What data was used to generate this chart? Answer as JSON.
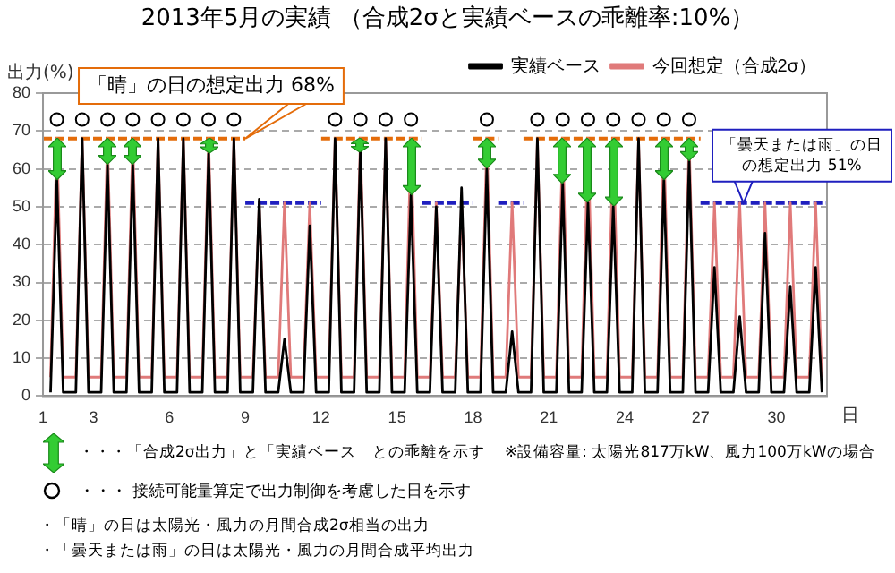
{
  "chart_data": {
    "type": "line",
    "title": "2013年5月の実績 （合成2σと実績ベースの乖離率:10%）",
    "ylabel": "出力(%)",
    "xlabel": "日",
    "xlim": [
      1,
      32
    ],
    "xticks": [
      1,
      3,
      6,
      9,
      12,
      15,
      18,
      21,
      24,
      27,
      30
    ],
    "ylim": [
      0,
      80
    ],
    "yticks": [
      0,
      10,
      20,
      30,
      40,
      50,
      60,
      70,
      80
    ],
    "grid": "y",
    "legend": "top right",
    "marker": "none",
    "line_style": "solid",
    "x": [
      1.3,
      1.55,
      1.8,
      2.3,
      2.55,
      2.8,
      3.3,
      3.55,
      3.8,
      4.3,
      4.55,
      4.8,
      5.3,
      5.55,
      5.8,
      6.3,
      6.55,
      6.8,
      7.3,
      7.55,
      7.8,
      8.3,
      8.55,
      8.8,
      9.3,
      9.55,
      9.8,
      10.3,
      10.55,
      10.8,
      11.3,
      11.55,
      11.8,
      12.3,
      12.55,
      12.8,
      13.3,
      13.55,
      13.8,
      14.3,
      14.55,
      14.8,
      15.3,
      15.55,
      15.8,
      16.3,
      16.55,
      16.8,
      17.3,
      17.55,
      17.8,
      18.3,
      18.55,
      18.8,
      19.3,
      19.55,
      19.8,
      20.3,
      20.55,
      20.8,
      21.3,
      21.55,
      21.8,
      22.3,
      22.55,
      22.8,
      23.3,
      23.55,
      23.8,
      24.3,
      24.55,
      24.8,
      25.3,
      25.55,
      25.8,
      26.3,
      26.55,
      26.8,
      27.3,
      27.55,
      27.8,
      28.3,
      28.55,
      28.8,
      29.3,
      29.55,
      29.8,
      30.3,
      30.55,
      30.8,
      31.3,
      31.55,
      31.8
    ],
    "series": [
      {
        "name": "実績ベース",
        "color": "#000000",
        "values": [
          1,
          57,
          1,
          1,
          68,
          1,
          1,
          61,
          1,
          1,
          61,
          1,
          1,
          68,
          1,
          1,
          68,
          1,
          1,
          64,
          1,
          1,
          68,
          1,
          1,
          52,
          1,
          1,
          15,
          1,
          1,
          45,
          1,
          1,
          68,
          1,
          1,
          65,
          1,
          1,
          68,
          1,
          1,
          53,
          1,
          1,
          50,
          1,
          1,
          55,
          1,
          1,
          60,
          1,
          1,
          17,
          1,
          1,
          68,
          1,
          1,
          56,
          1,
          1,
          51,
          1,
          1,
          50,
          1,
          1,
          68,
          1,
          1,
          57,
          1,
          1,
          62,
          1,
          1,
          34,
          1,
          1,
          21,
          1,
          1,
          43,
          1,
          1,
          29,
          1,
          1,
          34,
          1
        ]
      },
      {
        "name": "今回想定（合成2σ）",
        "color": "#e07a7a",
        "values": [
          5,
          68,
          5,
          5,
          68,
          5,
          5,
          68,
          5,
          5,
          68,
          5,
          5,
          68,
          5,
          5,
          68,
          5,
          5,
          68,
          5,
          5,
          68,
          5,
          5,
          51,
          5,
          5,
          51,
          5,
          5,
          51,
          5,
          5,
          68,
          5,
          5,
          68,
          5,
          5,
          68,
          5,
          5,
          68,
          5,
          5,
          51,
          5,
          5,
          51,
          5,
          5,
          68,
          5,
          5,
          51,
          5,
          5,
          68,
          5,
          5,
          68,
          5,
          5,
          68,
          5,
          5,
          68,
          5,
          5,
          68,
          5,
          5,
          68,
          5,
          5,
          68,
          5,
          5,
          51,
          5,
          5,
          51,
          5,
          5,
          51,
          5,
          5,
          51,
          5,
          5,
          51,
          5
        ]
      },
      {
        "color": "#e46c0a",
        "line_style": "dashed",
        "x": [
          1,
          9,
          10.5,
          12,
          16,
          17,
          18,
          19,
          19.5,
          20,
          27
        ],
        "values": [
          68,
          68,
          null,
          68,
          68,
          null,
          68,
          68,
          null,
          68,
          68
        ]
      },
      {
        "color": "#1f1fbf",
        "line_style": "dashed",
        "x": [
          9,
          12,
          14,
          16,
          18,
          18.5,
          19,
          20,
          23,
          27,
          32
        ],
        "values": [
          51,
          51,
          null,
          51,
          51,
          null,
          51,
          51,
          null,
          51,
          51
        ]
      },
      {
        "type": "scatter",
        "marker": "circle",
        "color": "#000000",
        "x": [
          1.55,
          2.55,
          3.55,
          4.55,
          5.55,
          6.55,
          7.55,
          8.55,
          12.55,
          13.55,
          14.55,
          15.55,
          18.55,
          20.55,
          21.55,
          22.55,
          23.55,
          24.55,
          25.55,
          26.55
        ],
        "values": [
          73,
          73,
          73,
          73,
          73,
          73,
          73,
          73,
          73,
          73,
          73,
          73,
          73,
          73,
          73,
          73,
          73,
          73,
          73,
          73
        ]
      }
    ],
    "annotations": [
      {
        "text": "「晴」の日の想定出力 68%",
        "x": 9,
        "y": 68
      },
      {
        "text": "「曇天または雨」の日の想定出力 51%",
        "x": 28.7,
        "y": 51
      },
      "・・・「合成2σ出力」と「実績ベース」との乖離を示す",
      "※設備容量: 太陽光817万kW、風力100万kWの場合",
      "・・・ 接続可能量算定で出力制御を考慮した日を示す",
      "・「晴」の日は太陽光・風力の月間合成2σ相当の出力",
      "・「曇天または雨」の日は太陽光・風力の月間合成平均出力"
    ]
  }
}
